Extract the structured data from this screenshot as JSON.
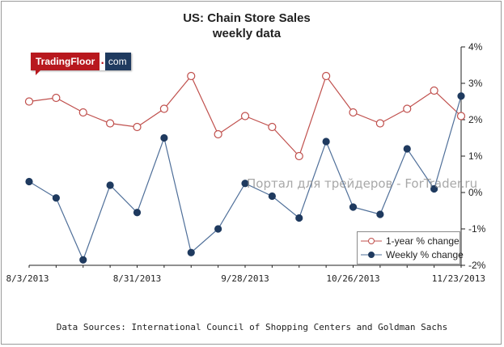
{
  "chart_data": {
    "type": "line",
    "title": "US: Chain Store Sales",
    "subtitle": "weekly data",
    "x_ticks": [
      "8/3/2013",
      "8/31/2013",
      "9/28/2013",
      "10/26/2013",
      "11/23/2013"
    ],
    "x": [
      "8/3/2013",
      "8/10/2013",
      "8/17/2013",
      "8/24/2013",
      "8/31/2013",
      "9/7/2013",
      "9/14/2013",
      "9/21/2013",
      "9/28/2013",
      "10/5/2013",
      "10/12/2013",
      "10/19/2013",
      "10/26/2013",
      "11/2/2013",
      "11/9/2013",
      "11/16/2013",
      "11/23/2013"
    ],
    "ylim": [
      -2,
      4
    ],
    "y_ticks": [
      "-2%",
      "-1%",
      "0%",
      "1%",
      "2%",
      "3%",
      "4%"
    ],
    "y_axis_side": "right",
    "grid": false,
    "legend_placement": "bottom-right",
    "series": [
      {
        "name": "1-year % change",
        "color": "#c0504d",
        "marker": "hollow-circle",
        "values": [
          2.5,
          2.6,
          2.2,
          1.9,
          1.8,
          2.3,
          3.2,
          1.6,
          2.1,
          1.8,
          1.0,
          3.2,
          2.2,
          1.9,
          2.3,
          2.8,
          2.1
        ]
      },
      {
        "name": "Weekly % change",
        "color": "#1f3a5f",
        "line_color": "#4f6f99",
        "marker": "filled-circle",
        "values": [
          0.3,
          -0.15,
          -1.85,
          0.2,
          -0.55,
          1.5,
          -1.65,
          -1.0,
          0.25,
          -0.1,
          -0.7,
          1.4,
          -0.4,
          -0.6,
          1.2,
          0.1,
          2.65
        ]
      }
    ]
  },
  "logo": {
    "brand": "TradingFloor",
    "dot": ".",
    "tld": "com"
  },
  "watermark": "Портал для трейдеров - ForTrader.ru",
  "source": "Data Sources: International Council of Shopping Centers and Goldman Sachs"
}
